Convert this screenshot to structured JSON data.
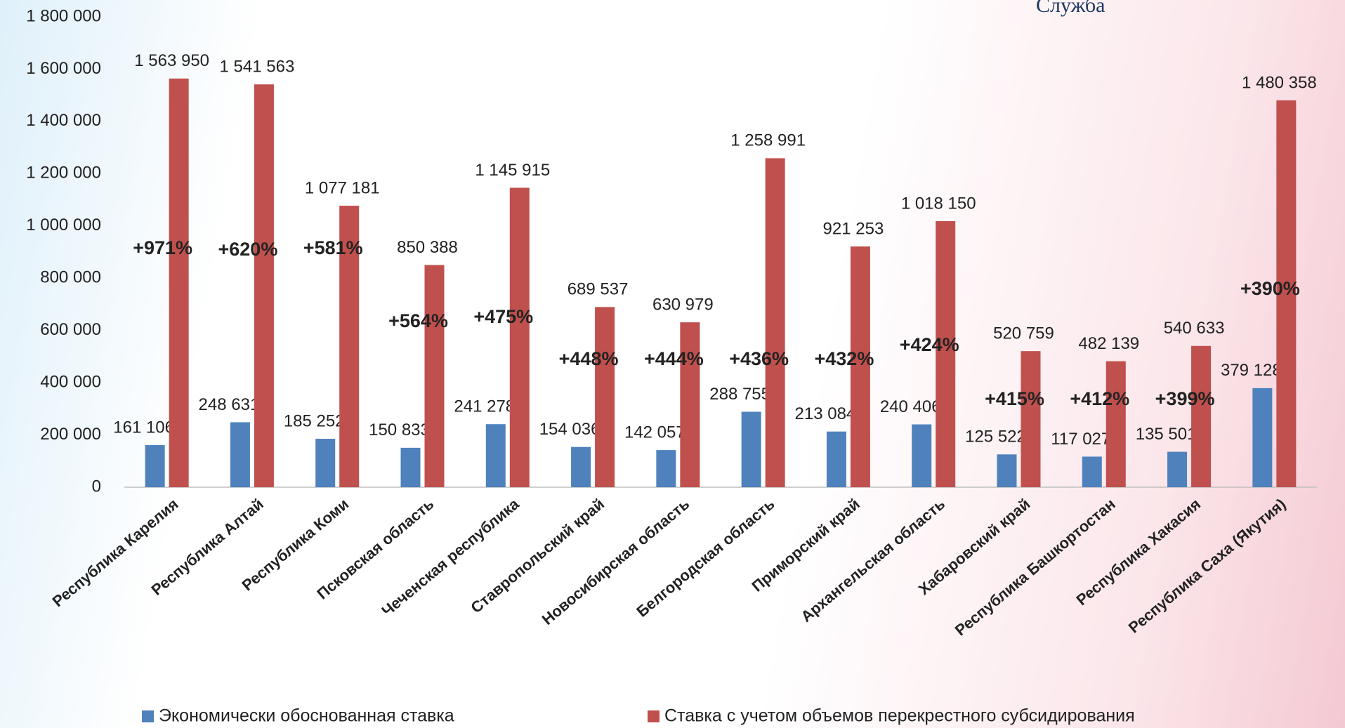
{
  "header": {
    "logo_text": "Служба"
  },
  "chart_data": {
    "type": "bar",
    "categories": [
      "Республика Карелия",
      "Республика Алтай",
      "Республика Коми",
      "Псковская область",
      "Чеченская республика",
      "Ставропольский край",
      "Новосибирская область",
      "Белгородская область",
      "Приморский край",
      "Архангельская область",
      "Хабаровский край",
      "Республика Башкортостан",
      "Республика Хакасия",
      "Республика Саха (Якутия)"
    ],
    "series": [
      {
        "name": "Экономически обоснованная ставка",
        "color": "#4f81bd",
        "values": [
          161106,
          248631,
          185252,
          150833,
          241278,
          154036,
          142057,
          288755,
          213084,
          240406,
          125522,
          117027,
          135501,
          379128
        ],
        "value_labels": [
          "161 106",
          "248 631",
          "185 252",
          "150 833",
          "241 278",
          "154 036",
          "142 057",
          "288 755",
          "213 084",
          "240 406",
          "125 522",
          "117 027",
          "135 501",
          "379 128"
        ]
      },
      {
        "name": "Ставка с учетом объемов перекрестного субсидирования",
        "color": "#c0504d",
        "values": [
          1563950,
          1541563,
          1077181,
          850388,
          1145915,
          689537,
          630979,
          1258991,
          921253,
          1018150,
          520759,
          482139,
          540633,
          1480358
        ],
        "value_labels": [
          "1 563 950",
          "1 541 563",
          "1 077 181",
          "850 388",
          "1 145 915",
          "689 537",
          "630 979",
          "1 258 991",
          "921 253",
          "1 018 150",
          "520 759",
          "482 139",
          "540 633",
          "1 480 358"
        ]
      }
    ],
    "annotations": [
      "+971%",
      "+620%",
      "+581%",
      "+564%",
      "+475%",
      "+448%",
      "+444%",
      "+436%",
      "+432%",
      "+424%",
      "+415%",
      "+412%",
      "+399%",
      "+390%"
    ],
    "ylim": [
      0,
      1800000
    ],
    "yticks": [
      0,
      {
        "value": 200000,
        "label": "200 000"
      },
      {
        "value": 400000,
        "label": "400 000"
      },
      {
        "value": 600000,
        "label": "600 000"
      },
      {
        "value": 800000,
        "label": "800 000"
      },
      {
        "value": 1000000,
        "label": "1 000 000"
      },
      {
        "value": 1200000,
        "label": "1 200 000"
      },
      {
        "value": 1400000,
        "label": "1 400 000"
      },
      {
        "value": 1600000,
        "label": "1 600 000"
      },
      {
        "value": 1800000,
        "label": "1 800 000"
      }
    ],
    "grid": false,
    "legend": "bottom"
  }
}
